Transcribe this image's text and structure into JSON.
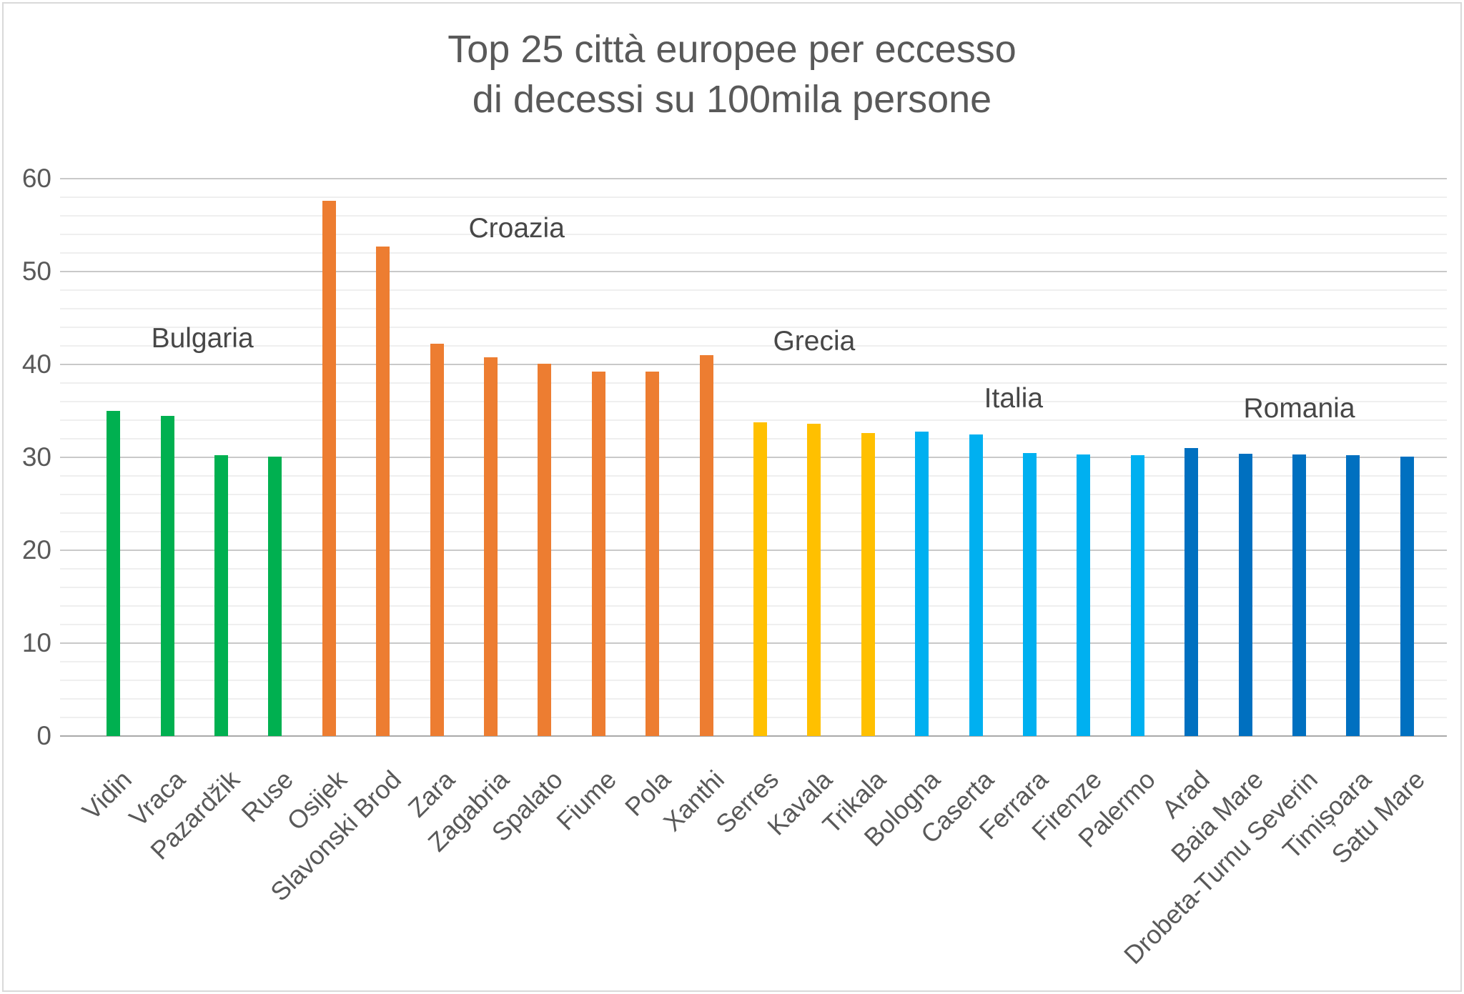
{
  "title": {
    "line1": "Top 25 città europee per eccesso",
    "line2": "di decessi su 100mila persone"
  },
  "chart_data": {
    "type": "bar",
    "title": "Top 25 città europee per eccesso di decessi su 100mila persone",
    "xlabel": "",
    "ylabel": "",
    "ylim": [
      0,
      60
    ],
    "y_ticks": [
      0,
      10,
      20,
      30,
      40,
      50,
      60
    ],
    "y_minor_step": 2,
    "grid": true,
    "legend": "none",
    "categories": [
      "Vidin",
      "Vraca",
      "Pazardžik",
      "Ruse",
      "Osijek",
      "Slavonski Brod",
      "Zara",
      "Zagabria",
      "Spalato",
      "Fiume",
      "Pola",
      "Xanthi",
      "Serres",
      "Kavala",
      "Trikala",
      "Bologna",
      "Caserta",
      "Ferrara",
      "Firenze",
      "Palermo",
      "Arad",
      "Baia Mare",
      "Drobeta-Turnu Severin",
      "Timișoara",
      "Satu Mare"
    ],
    "values": [
      35.0,
      34.5,
      30.2,
      30.1,
      57.6,
      52.7,
      42.2,
      40.8,
      40.1,
      39.2,
      39.2,
      41.0,
      33.8,
      33.6,
      32.6,
      32.8,
      32.5,
      30.5,
      30.3,
      30.2,
      31.0,
      30.4,
      30.3,
      30.2,
      30.1
    ],
    "bars": [
      {
        "city": "Vidin",
        "value": 35.0,
        "group": "Bulgaria"
      },
      {
        "city": "Vraca",
        "value": 34.5,
        "group": "Bulgaria"
      },
      {
        "city": "Pazardžik",
        "value": 30.2,
        "group": "Bulgaria"
      },
      {
        "city": "Ruse",
        "value": 30.1,
        "group": "Bulgaria"
      },
      {
        "city": "Osijek",
        "value": 57.6,
        "group": "Croazia"
      },
      {
        "city": "Slavonski Brod",
        "value": 52.7,
        "group": "Croazia"
      },
      {
        "city": "Zara",
        "value": 42.2,
        "group": "Croazia"
      },
      {
        "city": "Zagabria",
        "value": 40.8,
        "group": "Croazia"
      },
      {
        "city": "Spalato",
        "value": 40.1,
        "group": "Croazia"
      },
      {
        "city": "Fiume",
        "value": 39.2,
        "group": "Croazia"
      },
      {
        "city": "Pola",
        "value": 39.2,
        "group": "Croazia"
      },
      {
        "city": "Xanthi",
        "value": 41.0,
        "group": "Croazia"
      },
      {
        "city": "Serres",
        "value": 33.8,
        "group": "Grecia"
      },
      {
        "city": "Kavala",
        "value": 33.6,
        "group": "Grecia"
      },
      {
        "city": "Trikala",
        "value": 32.6,
        "group": "Grecia"
      },
      {
        "city": "Bologna",
        "value": 32.8,
        "group": "Italia"
      },
      {
        "city": "Caserta",
        "value": 32.5,
        "group": "Italia"
      },
      {
        "city": "Ferrara",
        "value": 30.5,
        "group": "Italia"
      },
      {
        "city": "Firenze",
        "value": 30.3,
        "group": "Italia"
      },
      {
        "city": "Palermo",
        "value": 30.2,
        "group": "Italia"
      },
      {
        "city": "Arad",
        "value": 31.0,
        "group": "Romania"
      },
      {
        "city": "Baia Mare",
        "value": 30.4,
        "group": "Romania"
      },
      {
        "city": "Drobeta-Turnu Severin",
        "value": 30.3,
        "group": "Romania"
      },
      {
        "city": "Timișoara",
        "value": 30.2,
        "group": "Romania"
      },
      {
        "city": "Satu Mare",
        "value": 30.1,
        "group": "Romania"
      }
    ],
    "groups": [
      {
        "name": "Bulgaria",
        "label": "Bulgaria",
        "color": "#00B050",
        "annotation": {
          "x_index": 1.65,
          "y_value": 42.8
        }
      },
      {
        "name": "Croazia",
        "label": "Croazia",
        "color": "#ED7D31",
        "annotation": {
          "x_index": 7.48,
          "y_value": 54.6
        }
      },
      {
        "name": "Grecia",
        "label": "Grecia",
        "color": "#FFC000",
        "annotation": {
          "x_index": 13.0,
          "y_value": 42.5
        }
      },
      {
        "name": "Italia",
        "label": "Italia",
        "color": "#00B0F0",
        "annotation": {
          "x_index": 16.7,
          "y_value": 36.3
        }
      },
      {
        "name": "Romania",
        "label": "Romania",
        "color": "#0070C0",
        "annotation": {
          "x_index": 22.0,
          "y_value": 35.2
        }
      }
    ],
    "colors": {
      "text": "#595959",
      "grid_major": "#c9c9c9",
      "grid_minor": "#efefef",
      "axis_line": "#a9a9a9",
      "frame_border": "#d9d9d9"
    }
  }
}
